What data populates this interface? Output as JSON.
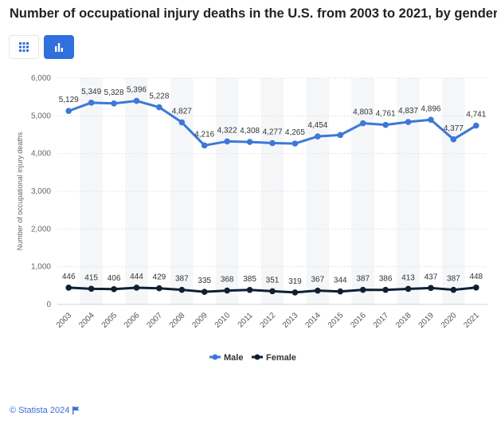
{
  "header": {
    "title": "Number of occupational injury deaths in the U.S. from 2003 to 2021, by gender"
  },
  "toolbar": {
    "table_view_icon": "grid-icon",
    "chart_view_icon": "bar-chart-icon"
  },
  "footer": {
    "source": "© Statista 2024",
    "flag_icon": "flag-icon"
  },
  "colors": {
    "male": "#3b78d8",
    "female": "#0f2033",
    "accent": "#2f6fde"
  },
  "chart_data": {
    "type": "line",
    "title": "Number of occupational injury deaths in the U.S. from 2003 to 2021, by gender",
    "xlabel": "",
    "ylabel": "Number of occupational injury deaths",
    "ylim": [
      0,
      6000
    ],
    "yticks": [
      0,
      1000,
      2000,
      3000,
      4000,
      5000,
      6000
    ],
    "ytick_labels": [
      "0",
      "1,000",
      "2,000",
      "3,000",
      "4,000",
      "5,000",
      "6,000"
    ],
    "grid": true,
    "legend_position": "bottom-center",
    "categories": [
      "2003",
      "2004",
      "2005",
      "2006",
      "2007",
      "2008",
      "2009",
      "2010",
      "2011",
      "2012",
      "2013",
      "2014",
      "2015",
      "2016",
      "2017",
      "2018",
      "2019",
      "2020",
      "2021"
    ],
    "series": [
      {
        "name": "Male",
        "color": "#3b78d8",
        "values": [
          5129,
          5349,
          5328,
          5396,
          5228,
          4827,
          4216,
          4322,
          4308,
          4277,
          4265,
          4454,
          4492,
          4803,
          4761,
          4837,
          4896,
          4377,
          4741
        ],
        "labels": [
          "5,129",
          "5,349",
          "5,328",
          "5,396",
          "5,228",
          "4,827",
          "4,216",
          "4,322",
          "4,308",
          "4,277",
          "4,265",
          "4,454",
          "",
          "4,803",
          "4,761",
          "4,837",
          "4,896",
          "4,377",
          "4,741"
        ]
      },
      {
        "name": "Female",
        "color": "#0f2033",
        "values": [
          446,
          415,
          406,
          444,
          429,
          387,
          335,
          368,
          385,
          351,
          319,
          367,
          344,
          387,
          386,
          413,
          437,
          387,
          448
        ],
        "labels": [
          "446",
          "415",
          "406",
          "444",
          "429",
          "387",
          "335",
          "368",
          "385",
          "351",
          "319",
          "367",
          "344",
          "387",
          "386",
          "413",
          "437",
          "387",
          "448"
        ]
      }
    ]
  }
}
